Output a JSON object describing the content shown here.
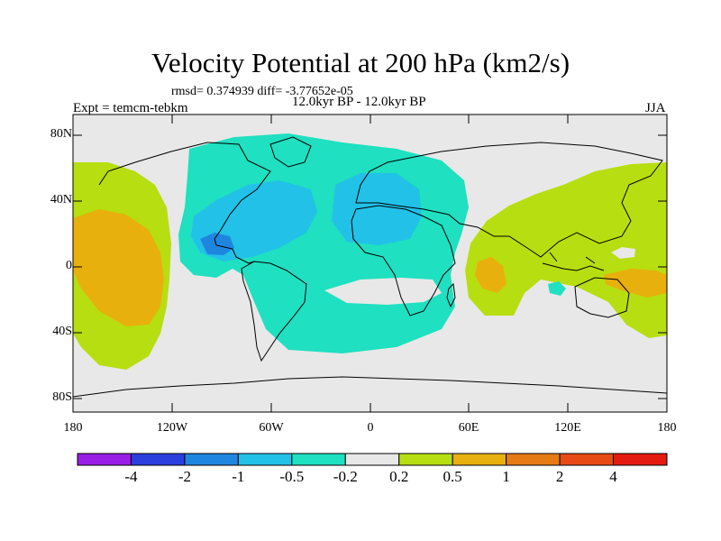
{
  "header": {
    "title": "Velocity Potential at 200 hPa (km2/s)",
    "stats": "rmsd= 0.374939 diff= -3.77652e-05",
    "experiment": "Expt = temcm-tebkm",
    "period": "12.0kyr BP - 12.0kyr BP",
    "season": "JJA"
  },
  "axes": {
    "lat_ticks": [
      "80N",
      "40N",
      "0",
      "40S",
      "80S"
    ],
    "lon_ticks": [
      "180",
      "120W",
      "60W",
      "0",
      "60E",
      "120E",
      "180"
    ]
  },
  "colorbar": {
    "colors": [
      "#9a1de6",
      "#2b3fde",
      "#1f86e0",
      "#22c1e8",
      "#1fe0c0",
      "#e8e8e8",
      "#b7de10",
      "#e8b00c",
      "#e67a14",
      "#e84a14",
      "#e51a10"
    ],
    "labels": [
      "-4",
      "-2",
      "-1",
      "-0.5",
      "-0.2",
      "0.2",
      "0.5",
      "1",
      "2",
      "4"
    ]
  },
  "map": {
    "projection": "cylindrical-equidistant",
    "lat_range": [
      -90,
      90
    ],
    "lon_range": [
      -180,
      180
    ]
  }
}
